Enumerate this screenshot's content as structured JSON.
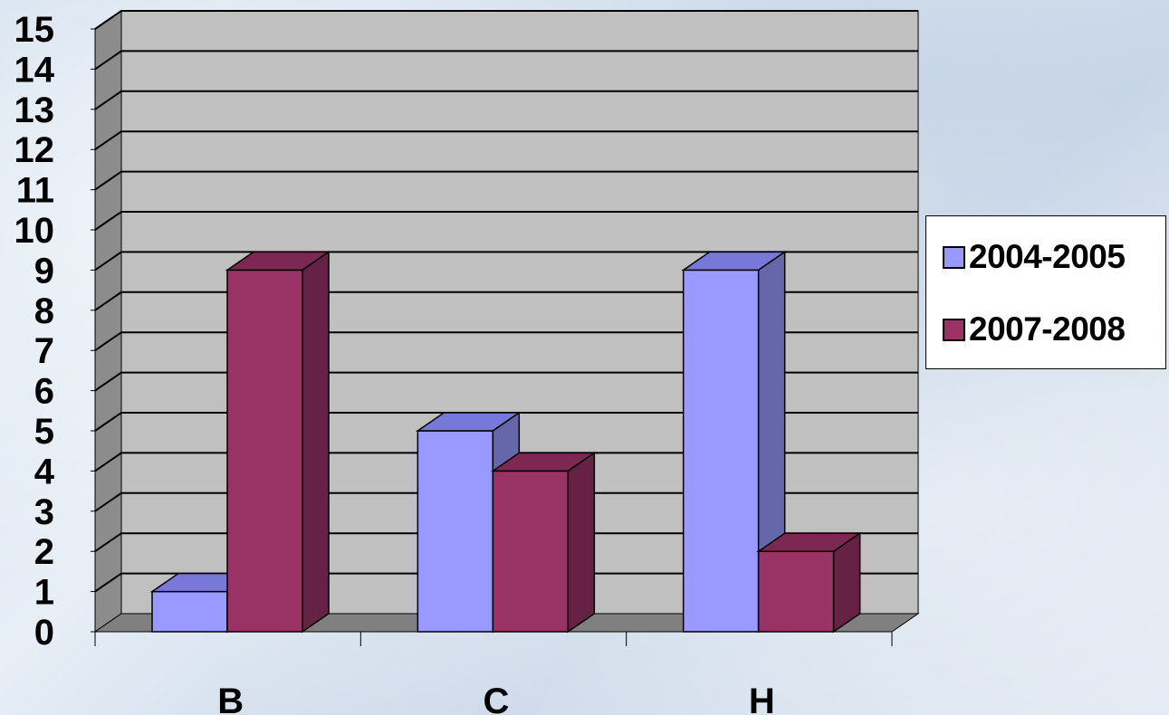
{
  "chart_data": {
    "type": "bar",
    "title": "",
    "xlabel": "",
    "ylabel": "",
    "categories": [
      "B",
      "C",
      "H"
    ],
    "series": [
      {
        "name": "2004-2005",
        "values": [
          1,
          5,
          9
        ],
        "color": "#9999ff",
        "shade_top": "#7878d8",
        "shade_side": "#6666aa"
      },
      {
        "name": "2007-2008",
        "values": [
          9,
          4,
          2
        ],
        "color": "#993366",
        "shade_top": "#7d2852",
        "shade_side": "#662244"
      }
    ],
    "ylim": [
      0,
      15
    ],
    "yticks": [
      "0",
      "1",
      "2",
      "3",
      "4",
      "5",
      "6",
      "7",
      "8",
      "9",
      "10",
      "11",
      "12",
      "13",
      "14",
      "15"
    ],
    "grid": true,
    "style": "3d-column",
    "legend_position": "right",
    "wall_color": "#c0c0c0",
    "floor_color": "#808080"
  }
}
